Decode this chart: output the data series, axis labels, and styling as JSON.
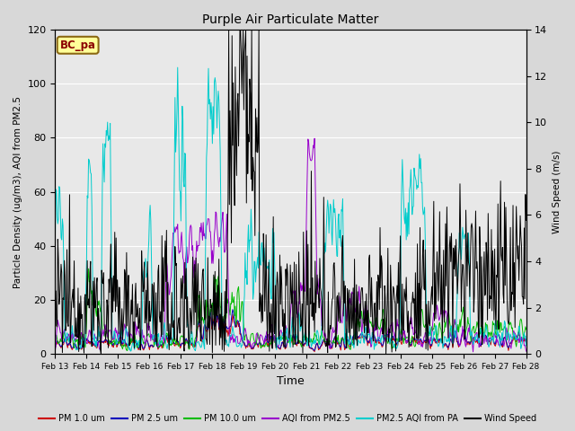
{
  "title": "Purple Air Particulate Matter",
  "xlabel": "Time",
  "ylabel_left": "Particle Density (ug/m3), AQI from PM2.5",
  "ylabel_right": "Wind Speed (m/s)",
  "ylim_left": [
    0,
    120
  ],
  "ylim_right": [
    0,
    14
  ],
  "yticks_left": [
    0,
    20,
    40,
    60,
    80,
    100,
    120
  ],
  "yticks_right": [
    0,
    2,
    4,
    6,
    8,
    10,
    12,
    14
  ],
  "xtick_labels": [
    "Feb 13",
    "Feb 14",
    "Feb 15",
    "Feb 16",
    "Feb 17",
    "Feb 18",
    "Feb 19",
    "Feb 20",
    "Feb 21",
    "Feb 22",
    "Feb 23",
    "Feb 24",
    "Feb 25",
    "Feb 26",
    "Feb 27",
    "Feb 28"
  ],
  "label_box_text": "BC_pa",
  "legend_entries": [
    {
      "label": "PM 1.0 um",
      "color": "#cc0000"
    },
    {
      "label": "PM 2.5 um",
      "color": "#0000bb"
    },
    {
      "label": "PM 10.0 um",
      "color": "#00bb00"
    },
    {
      "label": "AQI from PM2.5",
      "color": "#9900cc"
    },
    {
      "label": "PM2.5 AQI from PA",
      "color": "#00cccc"
    },
    {
      "label": "Wind Speed",
      "color": "#000000"
    }
  ],
  "bg_color": "#d8d8d8",
  "ax_bg_color": "#e8e8e8",
  "grid_color": "#ffffff",
  "n_points": 720,
  "n_days": 15
}
